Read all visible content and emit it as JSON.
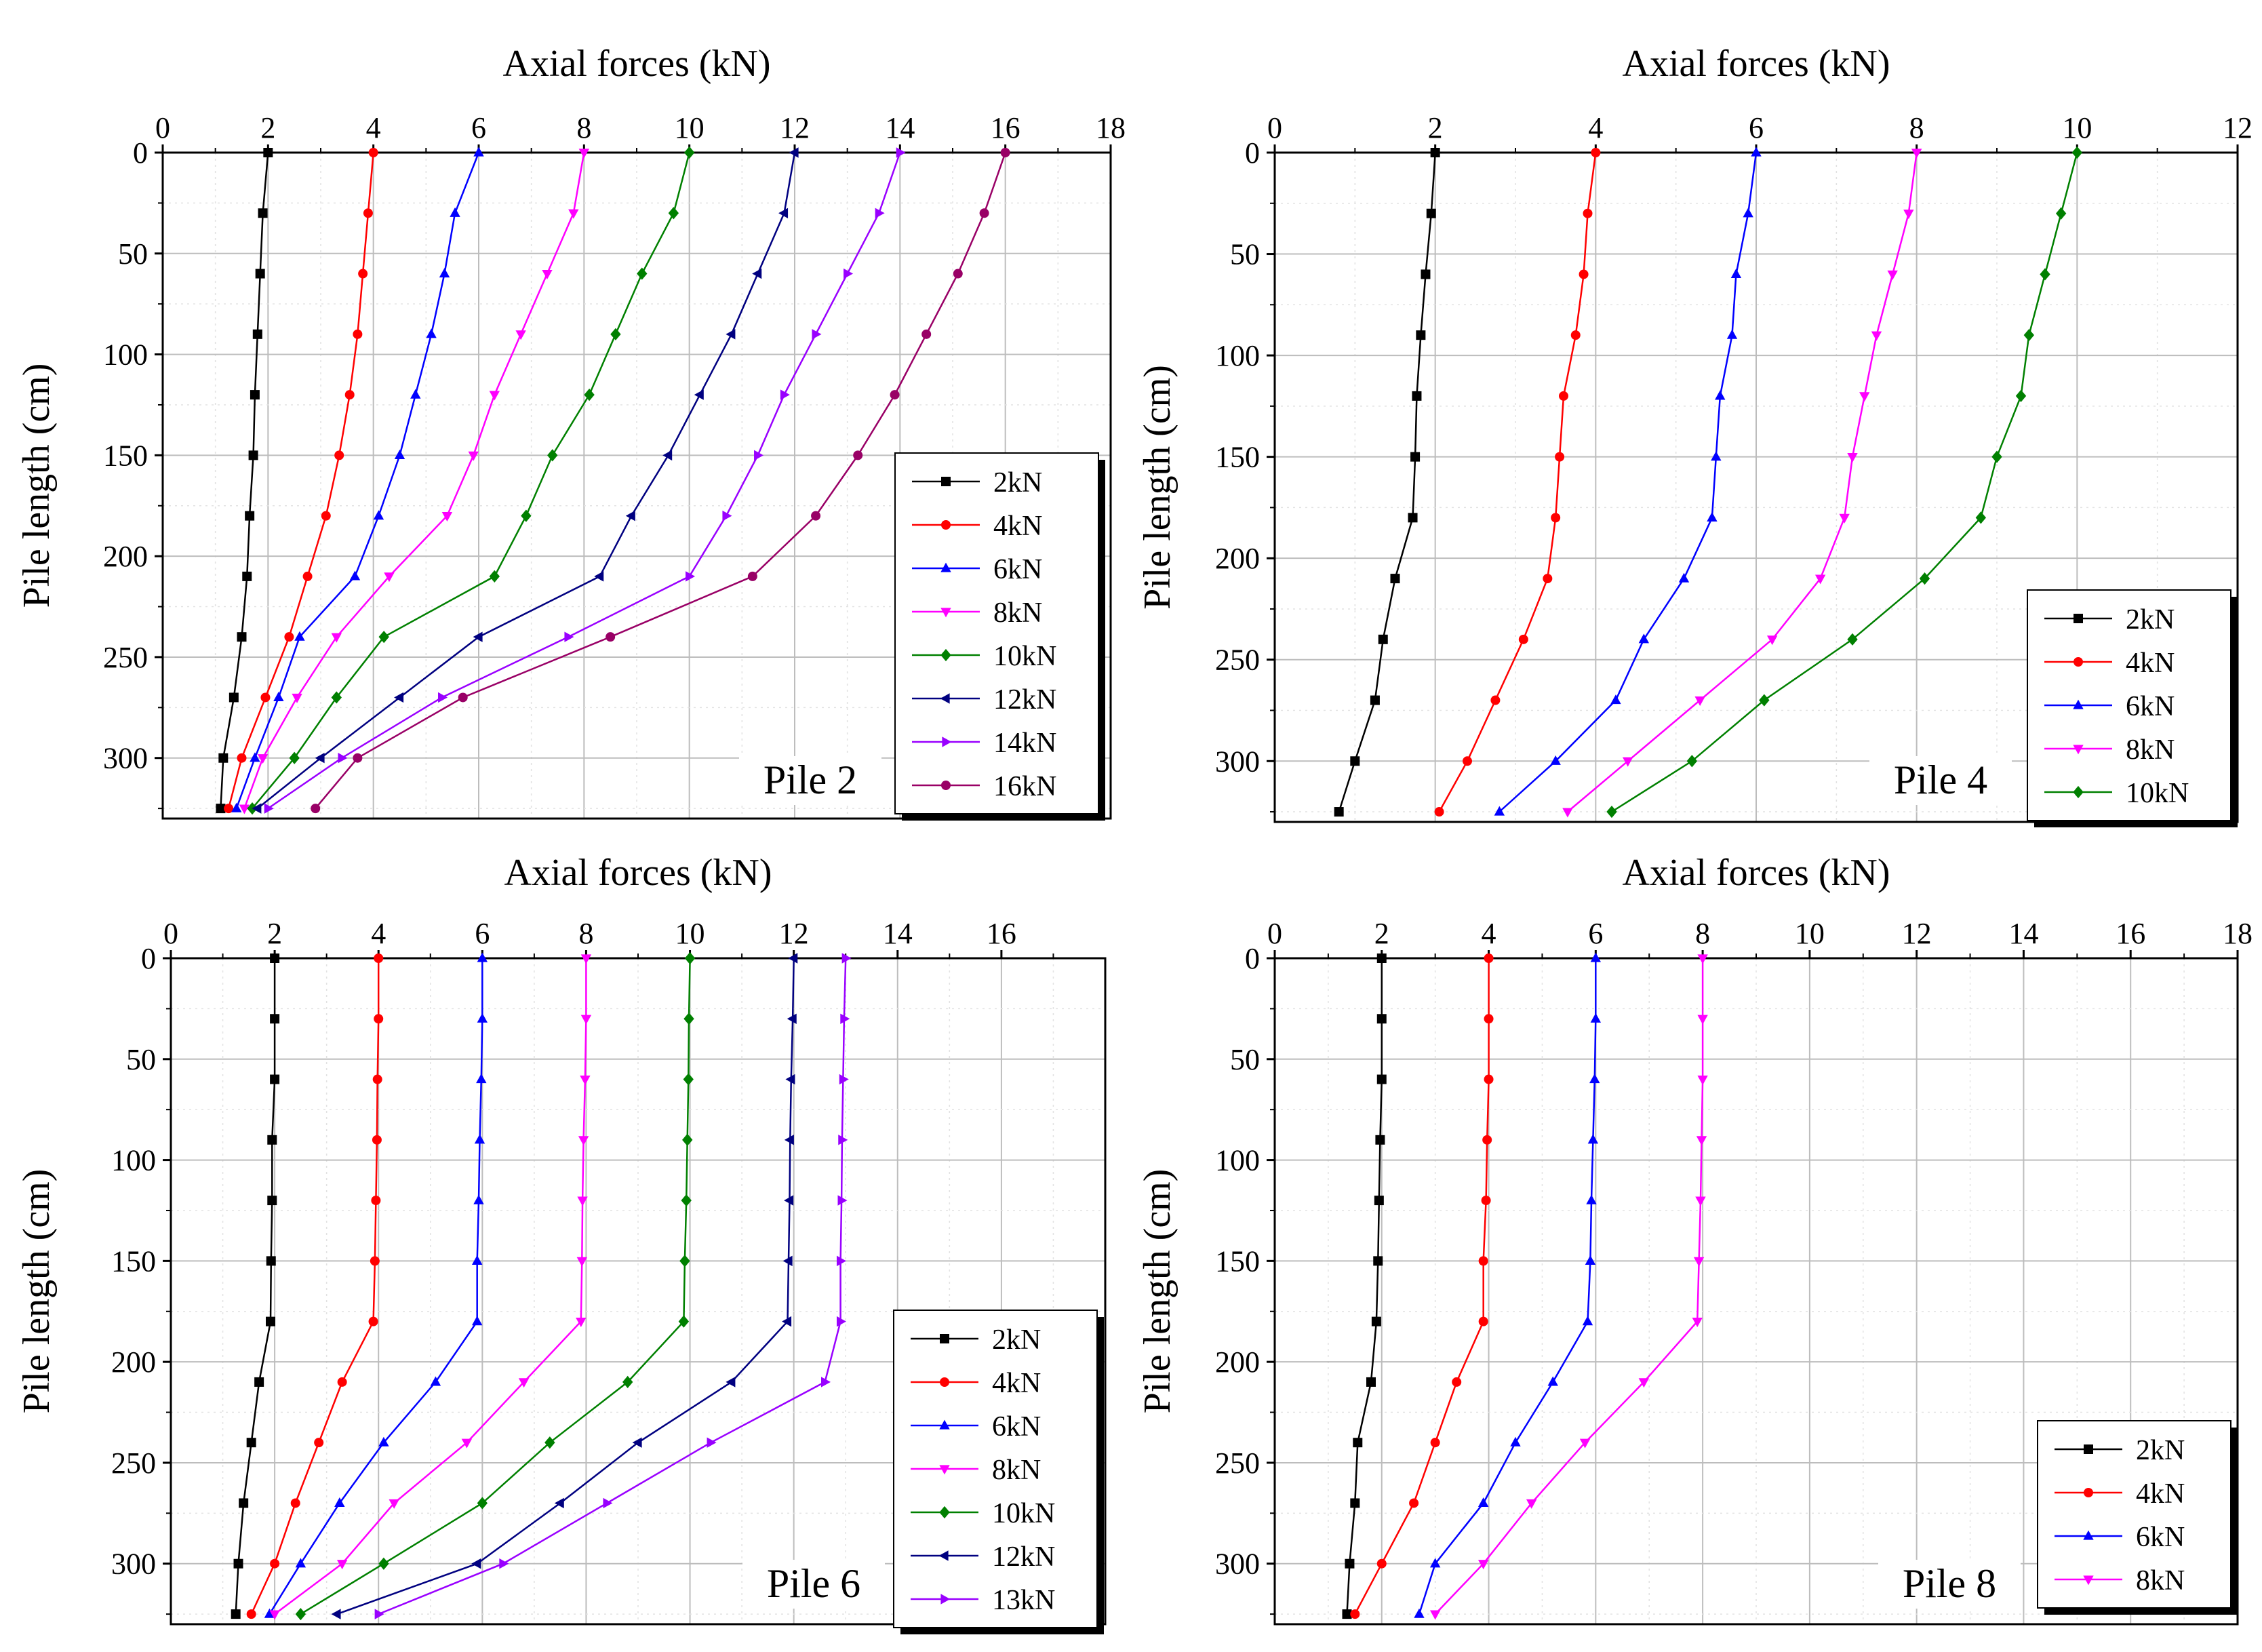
{
  "figure": {
    "x_axis_title": "Axial forces (kN)",
    "y_axis_title": "Pile length (cm)"
  },
  "chart_data": [
    {
      "type": "line",
      "title": "Pile 2",
      "xlabel": "Axial forces (kN)",
      "ylabel": "Pile length (cm)",
      "xlim": [
        0,
        18
      ],
      "ylim": [
        0,
        330
      ],
      "x_ticks": [
        0,
        2,
        4,
        6,
        8,
        10,
        12,
        14,
        16,
        18
      ],
      "y_ticks": [
        0,
        50,
        100,
        150,
        200,
        250,
        300
      ],
      "depths": [
        0,
        30,
        60,
        90,
        120,
        150,
        180,
        210,
        240,
        270,
        300,
        325
      ],
      "series": [
        {
          "name": "2kN",
          "color": "#000000",
          "marker": "square",
          "values": [
            2.0,
            1.9,
            1.85,
            1.8,
            1.75,
            1.72,
            1.65,
            1.6,
            1.5,
            1.35,
            1.15,
            1.1
          ]
        },
        {
          "name": "4kN",
          "color": "#ff0000",
          "marker": "circle",
          "values": [
            4.0,
            3.9,
            3.8,
            3.7,
            3.55,
            3.35,
            3.1,
            2.75,
            2.4,
            1.95,
            1.5,
            1.25
          ]
        },
        {
          "name": "6kN",
          "color": "#0000ff",
          "marker": "triangle-up",
          "values": [
            6.0,
            5.55,
            5.35,
            5.1,
            4.8,
            4.5,
            4.1,
            3.65,
            2.6,
            2.2,
            1.75,
            1.4
          ]
        },
        {
          "name": "8kN",
          "color": "#ff00ff",
          "marker": "triangle-down",
          "values": [
            8.0,
            7.8,
            7.3,
            6.8,
            6.3,
            5.9,
            5.4,
            4.3,
            3.3,
            2.55,
            1.9,
            1.55
          ]
        },
        {
          "name": "10kN",
          "color": "#008000",
          "marker": "diamond",
          "values": [
            10.0,
            9.7,
            9.1,
            8.6,
            8.1,
            7.4,
            6.9,
            6.3,
            4.2,
            3.3,
            2.5,
            1.7
          ]
        },
        {
          "name": "12kN",
          "color": "#000080",
          "marker": "triangle-left",
          "values": [
            12.0,
            11.8,
            11.3,
            10.8,
            10.2,
            9.6,
            8.9,
            8.3,
            6.0,
            4.5,
            3.0,
            1.8
          ]
        },
        {
          "name": "14kN",
          "color": "#9900ff",
          "marker": "triangle-right",
          "values": [
            14.0,
            13.6,
            13.0,
            12.4,
            11.8,
            11.3,
            10.7,
            10.0,
            7.7,
            5.3,
            3.4,
            2.0
          ]
        },
        {
          "name": "16kN",
          "color": "#990066",
          "marker": "circle",
          "values": [
            16.0,
            15.6,
            15.1,
            14.5,
            13.9,
            13.2,
            12.4,
            11.2,
            8.5,
            5.7,
            3.7,
            2.9
          ]
        }
      ]
    },
    {
      "type": "line",
      "title": "Pile 4",
      "xlabel": "Axial forces (kN)",
      "ylabel": "Pile length (cm)",
      "xlim": [
        0,
        12
      ],
      "ylim": [
        0,
        330
      ],
      "x_ticks": [
        0,
        2,
        4,
        6,
        8,
        10,
        12
      ],
      "y_ticks": [
        0,
        50,
        100,
        150,
        200,
        250,
        300
      ],
      "depths": [
        0,
        30,
        60,
        90,
        120,
        150,
        180,
        210,
        240,
        270,
        300,
        325
      ],
      "series": [
        {
          "name": "2kN",
          "color": "#000000",
          "marker": "square",
          "values": [
            2.0,
            1.95,
            1.88,
            1.82,
            1.77,
            1.75,
            1.72,
            1.5,
            1.35,
            1.25,
            1.0,
            0.8
          ]
        },
        {
          "name": "4kN",
          "color": "#ff0000",
          "marker": "circle",
          "values": [
            4.0,
            3.9,
            3.85,
            3.75,
            3.6,
            3.55,
            3.5,
            3.4,
            3.1,
            2.75,
            2.4,
            2.05
          ]
        },
        {
          "name": "6kN",
          "color": "#0000ff",
          "marker": "triangle-up",
          "values": [
            6.0,
            5.9,
            5.75,
            5.7,
            5.55,
            5.5,
            5.45,
            5.1,
            4.6,
            4.25,
            3.5,
            2.8
          ]
        },
        {
          "name": "8kN",
          "color": "#ff00ff",
          "marker": "triangle-down",
          "values": [
            8.0,
            7.9,
            7.7,
            7.5,
            7.35,
            7.2,
            7.1,
            6.8,
            6.2,
            5.3,
            4.4,
            3.65
          ]
        },
        {
          "name": "10kN",
          "color": "#008000",
          "marker": "diamond",
          "values": [
            10.0,
            9.8,
            9.6,
            9.4,
            9.3,
            9.0,
            8.8,
            8.1,
            7.2,
            6.1,
            5.2,
            4.2
          ]
        }
      ]
    },
    {
      "type": "line",
      "title": "Pile 6",
      "xlabel": "Axial forces (kN)",
      "ylabel": "Pile length (cm)",
      "xlim": [
        0,
        18
      ],
      "ylim": [
        0,
        330
      ],
      "x_ticks": [
        0,
        2,
        4,
        6,
        8,
        10,
        12,
        14,
        16
      ],
      "y_ticks": [
        0,
        50,
        100,
        150,
        200,
        250,
        300
      ],
      "depths": [
        0,
        30,
        60,
        90,
        120,
        150,
        180,
        210,
        240,
        270,
        300,
        325
      ],
      "series": [
        {
          "name": "2kN",
          "color": "#000000",
          "marker": "square",
          "values": [
            2.0,
            2.0,
            2.0,
            1.95,
            1.95,
            1.93,
            1.92,
            1.7,
            1.55,
            1.4,
            1.3,
            1.25
          ]
        },
        {
          "name": "4kN",
          "color": "#ff0000",
          "marker": "circle",
          "values": [
            4.0,
            4.0,
            3.98,
            3.97,
            3.95,
            3.93,
            3.9,
            3.3,
            2.85,
            2.4,
            2.0,
            1.55
          ]
        },
        {
          "name": "6kN",
          "color": "#0000ff",
          "marker": "triangle-up",
          "values": [
            6.0,
            6.0,
            5.98,
            5.95,
            5.93,
            5.9,
            5.9,
            5.1,
            4.1,
            3.25,
            2.5,
            1.9
          ]
        },
        {
          "name": "8kN",
          "color": "#ff00ff",
          "marker": "triangle-down",
          "values": [
            8.0,
            8.0,
            7.98,
            7.95,
            7.93,
            7.92,
            7.9,
            6.8,
            5.7,
            4.3,
            3.3,
            2.0
          ]
        },
        {
          "name": "10kN",
          "color": "#008000",
          "marker": "diamond",
          "values": [
            10.0,
            9.98,
            9.97,
            9.95,
            9.93,
            9.9,
            9.88,
            8.8,
            7.3,
            6.0,
            4.1,
            2.5
          ]
        },
        {
          "name": "12kN",
          "color": "#000080",
          "marker": "triangle-left",
          "values": [
            12.0,
            11.98,
            11.95,
            11.93,
            11.92,
            11.9,
            11.88,
            10.8,
            9.0,
            7.5,
            5.9,
            3.2
          ]
        },
        {
          "name": "13kN",
          "color": "#9900ff",
          "marker": "triangle-right",
          "values": [
            13.0,
            12.97,
            12.95,
            12.93,
            12.92,
            12.9,
            12.9,
            12.6,
            10.4,
            8.4,
            6.4,
            4.0
          ]
        }
      ]
    },
    {
      "type": "line",
      "title": "Pile 8",
      "xlabel": "Axial forces (kN)",
      "ylabel": "Pile length (cm)",
      "xlim": [
        0,
        18
      ],
      "ylim": [
        0,
        330
      ],
      "x_ticks": [
        0,
        2,
        4,
        6,
        8,
        10,
        12,
        14,
        16,
        18
      ],
      "y_ticks": [
        0,
        50,
        100,
        150,
        200,
        250,
        300
      ],
      "depths": [
        0,
        30,
        60,
        90,
        120,
        150,
        180,
        210,
        240,
        270,
        300,
        325
      ],
      "series": [
        {
          "name": "2kN",
          "color": "#000000",
          "marker": "square",
          "values": [
            2.0,
            2.0,
            2.0,
            1.97,
            1.95,
            1.93,
            1.9,
            1.8,
            1.55,
            1.5,
            1.4,
            1.35
          ]
        },
        {
          "name": "4kN",
          "color": "#ff0000",
          "marker": "circle",
          "values": [
            4.0,
            4.0,
            4.0,
            3.97,
            3.95,
            3.9,
            3.9,
            3.4,
            3.0,
            2.6,
            2.0,
            1.5
          ]
        },
        {
          "name": "6kN",
          "color": "#0000ff",
          "marker": "triangle-up",
          "values": [
            6.0,
            6.0,
            5.98,
            5.95,
            5.92,
            5.9,
            5.85,
            5.2,
            4.5,
            3.9,
            3.0,
            2.7
          ]
        },
        {
          "name": "8kN",
          "color": "#ff00ff",
          "marker": "triangle-down",
          "values": [
            8.0,
            8.0,
            8.0,
            7.98,
            7.96,
            7.93,
            7.9,
            6.9,
            5.8,
            4.8,
            3.9,
            3.0
          ]
        }
      ]
    }
  ]
}
